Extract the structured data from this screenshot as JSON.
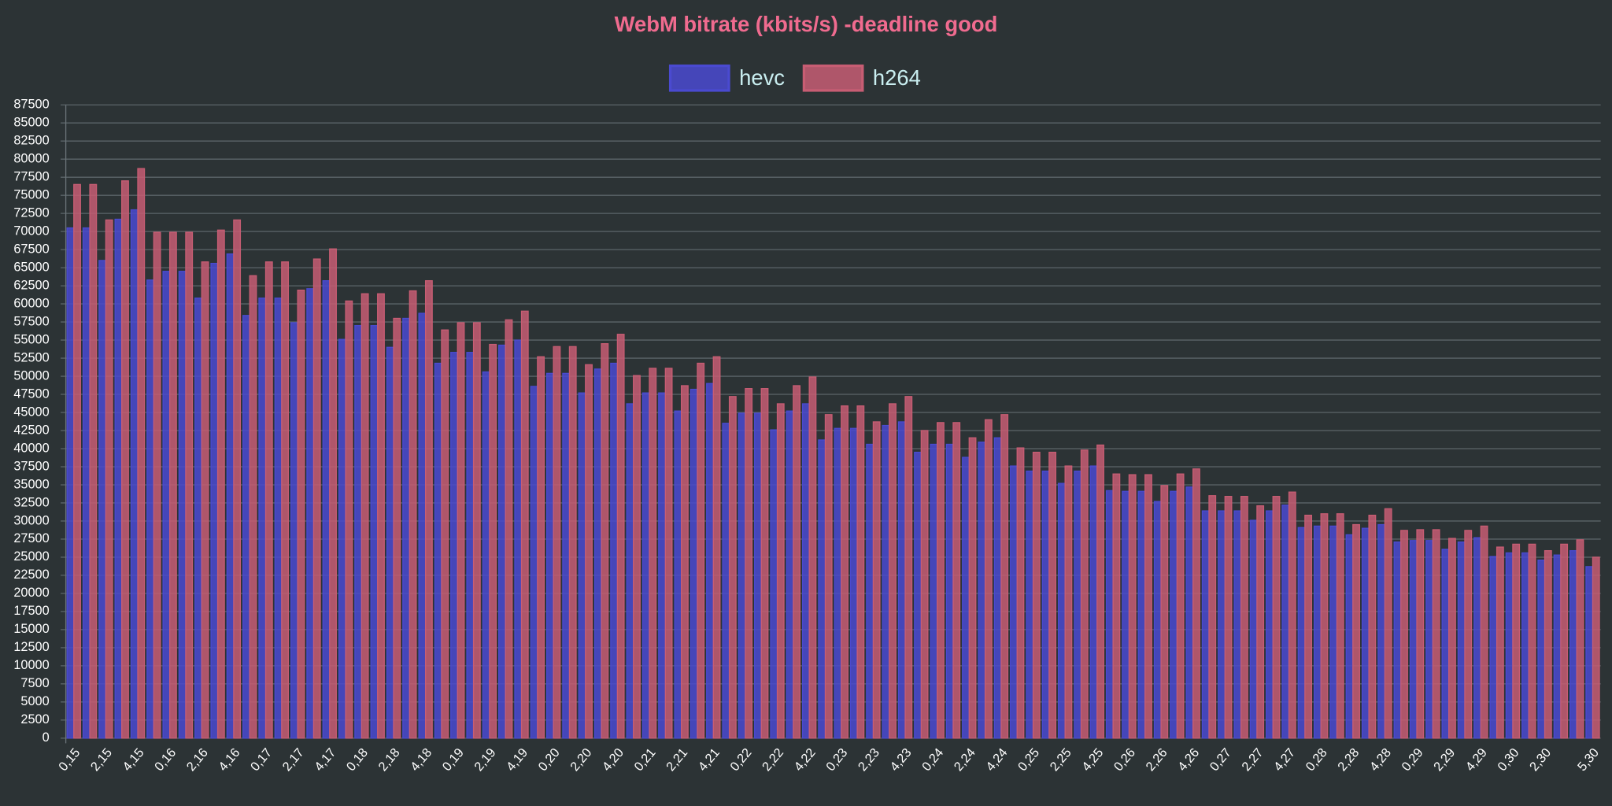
{
  "chart_data": {
    "type": "bar",
    "title": "WebM bitrate (kbits/s) -deadline good",
    "categories": [
      "0,15",
      null,
      "2,15",
      null,
      "4,15",
      null,
      "0,16",
      null,
      "2,16",
      null,
      "4,16",
      null,
      "0,17",
      null,
      "2,17",
      null,
      "4,17",
      null,
      "0,18",
      null,
      "2,18",
      null,
      "4,18",
      null,
      "0,19",
      null,
      "2,19",
      null,
      "4,19",
      null,
      "0,20",
      null,
      "2,20",
      null,
      "4,20",
      null,
      "0,21",
      null,
      "2,21",
      null,
      "4,21",
      null,
      "0,22",
      null,
      "2,22",
      null,
      "4,22",
      null,
      "0,23",
      null,
      "2,23",
      null,
      "4,23",
      null,
      "0,24",
      null,
      "2,24",
      null,
      "4,24",
      null,
      "0,25",
      null,
      "2,25",
      null,
      "4,25",
      null,
      "0,26",
      null,
      "2,26",
      null,
      "4,26",
      null,
      "0,27",
      null,
      "2,27",
      null,
      "4,27",
      null,
      "0,28",
      null,
      "2,28",
      null,
      "4,28",
      null,
      "0,29",
      null,
      "2,29",
      null,
      "4,29",
      null,
      "0,30",
      null,
      "2,30",
      null,
      null,
      "5,30"
    ],
    "series": [
      {
        "name": "hevc",
        "color": "#4a4ad0",
        "values": [
          70500,
          70500,
          66000,
          71700,
          73000,
          63300,
          64500,
          64500,
          60800,
          65600,
          66900,
          58400,
          60800,
          60800,
          57400,
          62100,
          63200,
          55100,
          57000,
          57000,
          54000,
          58000,
          58700,
          51800,
          53300,
          53300,
          50600,
          54300,
          55000,
          48600,
          50400,
          50400,
          47700,
          51000,
          51800,
          46200,
          47700,
          47700,
          45200,
          48200,
          49000,
          43500,
          44900,
          44900,
          42600,
          45200,
          46200,
          41200,
          42800,
          42800,
          40600,
          43200,
          43700,
          39500,
          40600,
          40600,
          38800,
          40900,
          41500,
          37600,
          36900,
          36900,
          35200,
          36900,
          37600,
          34200,
          34100,
          34100,
          32700,
          34100,
          34700,
          31400,
          31400,
          31400,
          30100,
          31400,
          32200,
          29100,
          29300,
          29300,
          28100,
          29000,
          29500,
          27100,
          27300,
          27300,
          26100,
          27100,
          27700,
          25100,
          25600,
          25600,
          24600,
          25300,
          25900,
          23700
        ]
      },
      {
        "name": "h264",
        "color": "#c75d73",
        "values": [
          76500,
          76500,
          71600,
          77000,
          78700,
          69900,
          69900,
          69900,
          65800,
          70200,
          71600,
          63900,
          65800,
          65800,
          61900,
          66200,
          67600,
          60400,
          61400,
          61400,
          58000,
          61800,
          63200,
          56400,
          57400,
          57400,
          54400,
          57800,
          59000,
          52700,
          54100,
          54100,
          51600,
          54500,
          55800,
          50100,
          51100,
          51100,
          48700,
          51800,
          52700,
          47200,
          48300,
          48300,
          46200,
          48700,
          49900,
          44700,
          45900,
          45900,
          43700,
          46200,
          47200,
          42500,
          43600,
          43600,
          41500,
          44000,
          44700,
          40100,
          39500,
          39500,
          37600,
          39800,
          40500,
          36500,
          36400,
          36400,
          34900,
          36500,
          37200,
          33500,
          33400,
          33400,
          32100,
          33400,
          34000,
          30800,
          31000,
          31000,
          29500,
          30800,
          31700,
          28700,
          28800,
          28800,
          27600,
          28700,
          29300,
          26400,
          26800,
          26800,
          25900,
          26800,
          27400,
          25000
        ]
      }
    ],
    "ylim": [
      0,
      87500
    ],
    "yticks": [
      0,
      2500,
      5000,
      7500,
      10000,
      12500,
      15000,
      17500,
      20000,
      22500,
      25000,
      27500,
      30000,
      32500,
      35000,
      37500,
      40000,
      42500,
      45000,
      47500,
      50000,
      52500,
      55000,
      57500,
      60000,
      62500,
      65000,
      67500,
      70000,
      72500,
      75000,
      77500,
      80000,
      82500,
      85000,
      87500
    ],
    "grid": true,
    "legend": "top"
  }
}
